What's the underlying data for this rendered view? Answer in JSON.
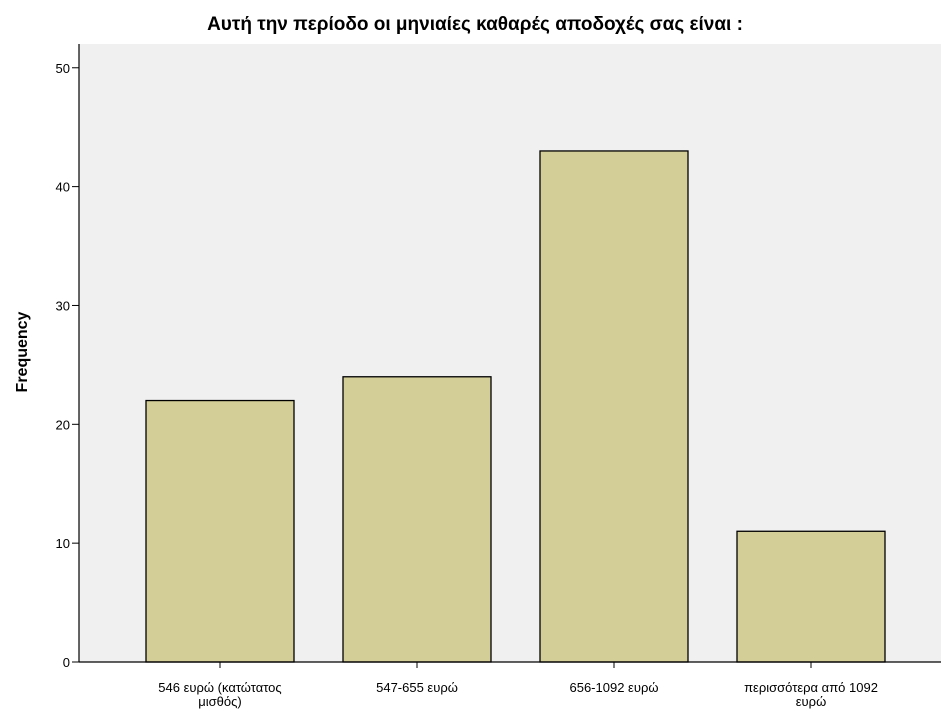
{
  "chart_data": {
    "type": "bar",
    "title": "Αυτή την περίοδο οι μηνιαίες καθαρές αποδοχές σας είναι :",
    "xlabel": "",
    "ylabel": "Frequency",
    "categories": [
      [
        "546 ευρώ (κατώτατος",
        "μισθός)"
      ],
      [
        "547-655 ευρώ"
      ],
      [
        "656-1092 ευρώ"
      ],
      [
        "περισσότερα από 1092",
        "ευρώ"
      ]
    ],
    "values": [
      22,
      24,
      43,
      11
    ],
    "ylim": [
      0,
      52
    ],
    "yticks": [
      0,
      10,
      20,
      30,
      40,
      50
    ],
    "grid": false,
    "legend": "none",
    "colors": {
      "plot_background": "#f0f0f0",
      "bar_fill": "#d3cd97",
      "bar_stroke": "#000000",
      "axis": "#000000"
    }
  }
}
